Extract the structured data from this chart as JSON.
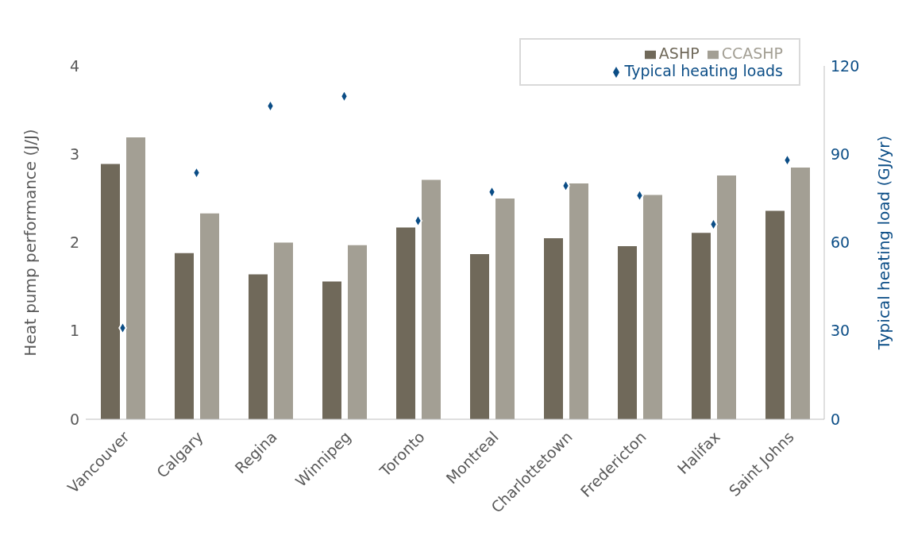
{
  "chart_data": {
    "type": "bar",
    "categories": [
      "Vancouver",
      "Calgary",
      "Regina",
      "Winnipeg",
      "Toronto",
      "Montreal",
      "Charlottetown",
      "Fredericton",
      "Halifax",
      "Saint Johns"
    ],
    "ylabel": "Heat pump performance (J/J)",
    "y2label": "Typical heating load (GJ/yr)",
    "ylim": [
      0,
      4
    ],
    "yticks": [
      0,
      1,
      2,
      3,
      4
    ],
    "y2lim": [
      0,
      120
    ],
    "y2ticks": [
      0,
      30,
      60,
      90,
      120
    ],
    "legend": "top right",
    "series": [
      {
        "name": "ASHP",
        "color": "#70695a",
        "values": [
          2.89,
          1.88,
          1.64,
          1.56,
          2.17,
          1.87,
          2.05,
          1.96,
          2.11,
          2.36
        ]
      },
      {
        "name": "CCASHP",
        "color": "#a39f94",
        "values": [
          3.19,
          2.33,
          2.0,
          1.97,
          2.71,
          2.5,
          2.67,
          2.54,
          2.76,
          2.85
        ]
      },
      {
        "name": "Typical heating loads",
        "type": "scatter",
        "axis": "y2",
        "marker": "diamond",
        "color": "#0b4d86",
        "values": [
          31,
          83.7,
          106.4,
          109.7,
          67.4,
          77.2,
          79.3,
          76,
          66.2,
          88
        ]
      }
    ]
  }
}
